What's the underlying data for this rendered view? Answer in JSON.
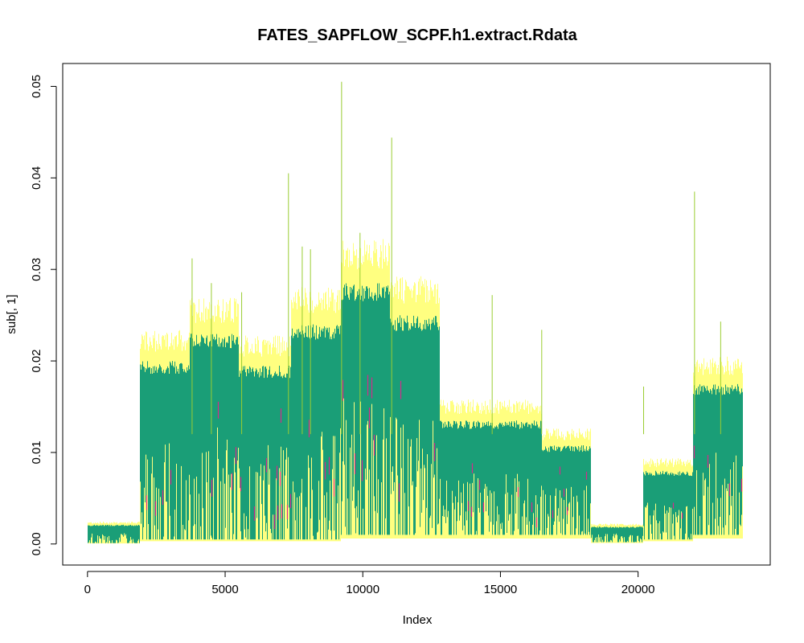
{
  "chart_data": {
    "type": "line",
    "title": "FATES_SAPFLOW_SCPF.h1.extract.Rdata",
    "xlabel": "Index",
    "ylabel": "sub[, 1]",
    "xlim": [
      -900,
      24800
    ],
    "ylim": [
      -0.0023,
      0.0525
    ],
    "x_ticks": [
      0,
      5000,
      10000,
      15000,
      20000
    ],
    "y_ticks": [
      0.0,
      0.01,
      0.02,
      0.03,
      0.04,
      0.05
    ],
    "x_tick_labels": [
      "0",
      "5000",
      "10000",
      "15000",
      "20000"
    ],
    "y_tick_labels": [
      "0.00",
      "0.01",
      "0.02",
      "0.03",
      "0.04",
      "0.05"
    ],
    "grid": false,
    "legend": "none",
    "series_colors": [
      "#ffff80",
      "#9acd32",
      "#1a9e77",
      "#d62a8c"
    ],
    "segments": [
      {
        "x_start": 0,
        "x_end": 1900,
        "upper": 0.0021,
        "lower": 0.0001
      },
      {
        "x_start": 1900,
        "x_end": 3700,
        "upper": 0.02,
        "lower": 0.0005
      },
      {
        "x_start": 3700,
        "x_end": 5500,
        "upper": 0.023,
        "lower": 0.0005
      },
      {
        "x_start": 5500,
        "x_end": 7400,
        "upper": 0.0195,
        "lower": 0.0005
      },
      {
        "x_start": 7400,
        "x_end": 9200,
        "upper": 0.024,
        "lower": 0.0005
      },
      {
        "x_start": 9200,
        "x_end": 11000,
        "upper": 0.0285,
        "lower": 0.001
      },
      {
        "x_start": 11000,
        "x_end": 12800,
        "upper": 0.025,
        "lower": 0.001
      },
      {
        "x_start": 12800,
        "x_end": 14700,
        "upper": 0.0135,
        "lower": 0.001
      },
      {
        "x_start": 14700,
        "x_end": 16500,
        "upper": 0.0135,
        "lower": 0.001
      },
      {
        "x_start": 16500,
        "x_end": 18300,
        "upper": 0.0108,
        "lower": 0.001
      },
      {
        "x_start": 18300,
        "x_end": 20200,
        "upper": 0.0019,
        "lower": 0.0002
      },
      {
        "x_start": 20200,
        "x_end": 22000,
        "upper": 0.008,
        "lower": 0.0005
      },
      {
        "x_start": 22000,
        "x_end": 23800,
        "upper": 0.0175,
        "lower": 0.001
      }
    ],
    "spikes": [
      {
        "x": 3800,
        "y": 0.0312
      },
      {
        "x": 4500,
        "y": 0.0285
      },
      {
        "x": 5600,
        "y": 0.0275
      },
      {
        "x": 7300,
        "y": 0.0405
      },
      {
        "x": 7800,
        "y": 0.0325
      },
      {
        "x": 8100,
        "y": 0.0322
      },
      {
        "x": 9230,
        "y": 0.0505
      },
      {
        "x": 9900,
        "y": 0.034
      },
      {
        "x": 11050,
        "y": 0.0444
      },
      {
        "x": 14700,
        "y": 0.0272
      },
      {
        "x": 16500,
        "y": 0.0234
      },
      {
        "x": 20200,
        "y": 0.0172
      },
      {
        "x": 22050,
        "y": 0.0385
      },
      {
        "x": 23000,
        "y": 0.0243
      }
    ]
  }
}
